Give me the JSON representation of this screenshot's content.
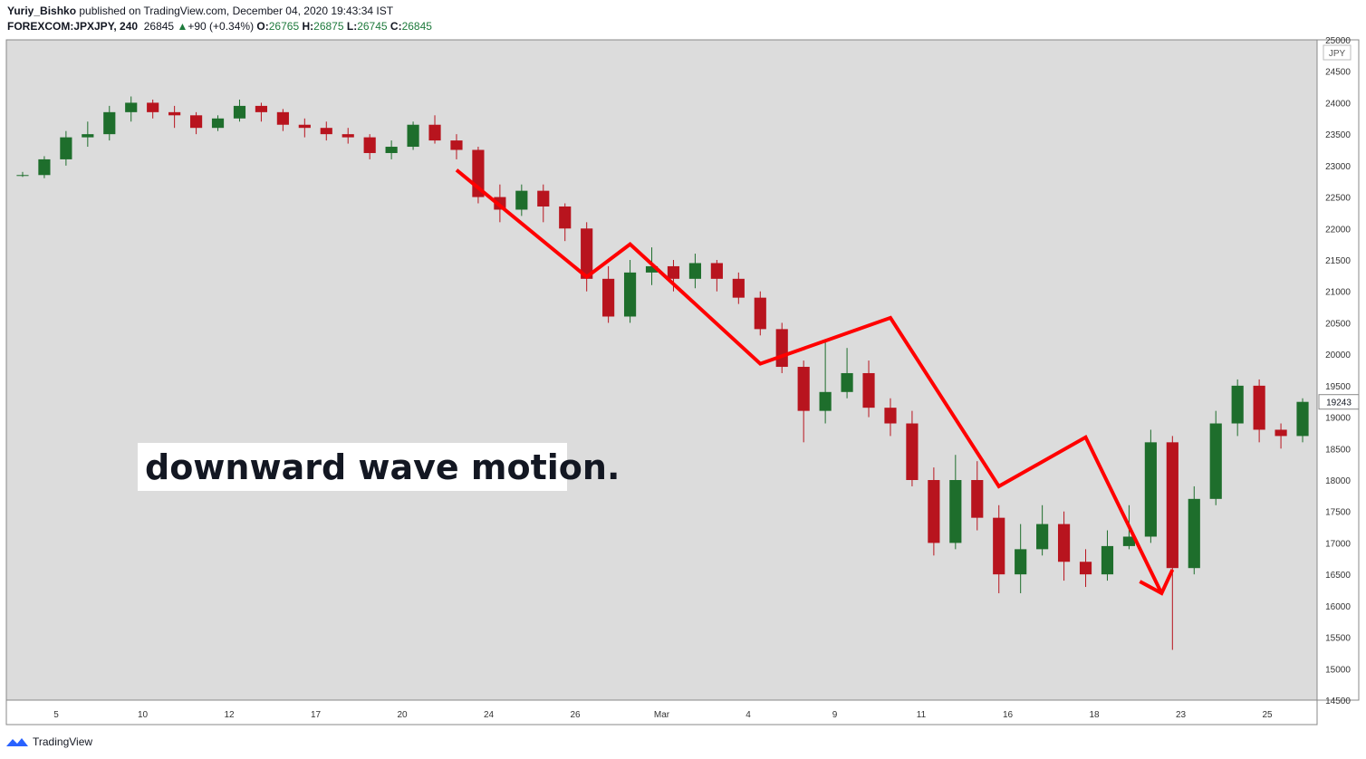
{
  "header": {
    "publisher": "Yuriy_Bishko",
    "published_text": "published on TradingView.com, December 04, 2020 19:43:34 IST",
    "symbol": "FOREXCOM:JPXJPY, 240",
    "last": "26845",
    "arrow": "▲",
    "change": "+90 (+0.34%)",
    "o_label": "O:",
    "o": "26765",
    "h_label": "H:",
    "h": "26875",
    "l_label": "L:",
    "l": "26745",
    "c_label": "C:",
    "c": "26845"
  },
  "brand": {
    "name": "TradingView",
    "icon": "tradingview-logo-icon"
  },
  "colors": {
    "background": "#dcdcdc",
    "up": "#1e6e2c",
    "down": "#b8141e",
    "annotation": "#ff0000",
    "price_tag": "#ffffff"
  },
  "chart_data": {
    "type": "candlestick",
    "currency": "JPY",
    "last_price_label": "19243",
    "ylim": [
      14500,
      25000
    ],
    "y_ticks": [
      "25000",
      "24500",
      "24000",
      "23500",
      "23000",
      "22500",
      "22000",
      "21500",
      "21000",
      "20500",
      "20000",
      "19500",
      "19000",
      "18500",
      "18000",
      "17500",
      "17000",
      "16500",
      "16000",
      "15500",
      "15000",
      "14500"
    ],
    "x_ticks": [
      "5",
      "10",
      "12",
      "17",
      "20",
      "24",
      "26",
      "Mar",
      "4",
      "9",
      "11",
      "16",
      "18",
      "23",
      "25"
    ],
    "annotation_text": "downward wave motion.",
    "wave_line": [
      [
        20,
        22930
      ],
      [
        26,
        21230
      ],
      [
        28,
        21750
      ],
      [
        34,
        19850
      ],
      [
        40,
        20580
      ],
      [
        45,
        17900
      ],
      [
        49,
        18680
      ],
      [
        52.5,
        16200
      ]
    ],
    "wave_arrow_tip": [
      52.5,
      16200
    ],
    "candles": [
      [
        22850,
        22850,
        22900,
        22820
      ],
      [
        22850,
        23100,
        23150,
        22800
      ],
      [
        23100,
        23450,
        23550,
        23000
      ],
      [
        23450,
        23500,
        23700,
        23300
      ],
      [
        23500,
        23850,
        23950,
        23400
      ],
      [
        23850,
        24000,
        24100,
        23700
      ],
      [
        24000,
        23850,
        24050,
        23750
      ],
      [
        23850,
        23800,
        23950,
        23600
      ],
      [
        23800,
        23600,
        23850,
        23500
      ],
      [
        23600,
        23750,
        23800,
        23550
      ],
      [
        23750,
        23950,
        24050,
        23700
      ],
      [
        23950,
        23850,
        24000,
        23700
      ],
      [
        23850,
        23650,
        23900,
        23550
      ],
      [
        23650,
        23600,
        23750,
        23450
      ],
      [
        23600,
        23500,
        23700,
        23400
      ],
      [
        23500,
        23450,
        23600,
        23350
      ],
      [
        23450,
        23200,
        23500,
        23100
      ],
      [
        23200,
        23300,
        23400,
        23100
      ],
      [
        23300,
        23650,
        23700,
        23250
      ],
      [
        23650,
        23400,
        23800,
        23350
      ],
      [
        23400,
        23250,
        23500,
        23100
      ],
      [
        23250,
        22500,
        23300,
        22400
      ],
      [
        22500,
        22300,
        22700,
        22100
      ],
      [
        22300,
        22600,
        22700,
        22200
      ],
      [
        22600,
        22350,
        22700,
        22100
      ],
      [
        22350,
        22000,
        22400,
        21800
      ],
      [
        22000,
        21200,
        22100,
        21000
      ],
      [
        21200,
        20600,
        21400,
        20500
      ],
      [
        20600,
        21300,
        21500,
        20500
      ],
      [
        21300,
        21400,
        21700,
        21100
      ],
      [
        21400,
        21200,
        21500,
        21000
      ],
      [
        21200,
        21450,
        21600,
        21050
      ],
      [
        21450,
        21200,
        21500,
        21000
      ],
      [
        21200,
        20900,
        21300,
        20800
      ],
      [
        20900,
        20400,
        21000,
        20300
      ],
      [
        20400,
        19800,
        20500,
        19700
      ],
      [
        19800,
        19100,
        19900,
        18600
      ],
      [
        19100,
        19400,
        20200,
        18900
      ],
      [
        19400,
        19700,
        20100,
        19300
      ],
      [
        19700,
        19150,
        19900,
        19000
      ],
      [
        19150,
        18900,
        19300,
        18700
      ],
      [
        18900,
        18000,
        19100,
        17900
      ],
      [
        18000,
        17000,
        18200,
        16800
      ],
      [
        17000,
        18000,
        18400,
        16900
      ],
      [
        18000,
        17400,
        18300,
        17200
      ],
      [
        17400,
        16500,
        17600,
        16200
      ],
      [
        16500,
        16900,
        17300,
        16200
      ],
      [
        16900,
        17300,
        17600,
        16800
      ],
      [
        17300,
        16700,
        17500,
        16400
      ],
      [
        16700,
        16500,
        16900,
        16300
      ],
      [
        16500,
        16950,
        17200,
        16400
      ],
      [
        16950,
        17100,
        17600,
        16900
      ],
      [
        17100,
        18600,
        18800,
        17000
      ],
      [
        18600,
        16600,
        18700,
        15300
      ],
      [
        16600,
        17700,
        17900,
        16500
      ],
      [
        17700,
        18900,
        19100,
        17600
      ],
      [
        18900,
        19500,
        19600,
        18700
      ],
      [
        19500,
        18800,
        19600,
        18600
      ],
      [
        18800,
        18700,
        18900,
        18500
      ],
      [
        18700,
        19243,
        19300,
        18600
      ]
    ],
    "grid": false,
    "legend": "none"
  }
}
